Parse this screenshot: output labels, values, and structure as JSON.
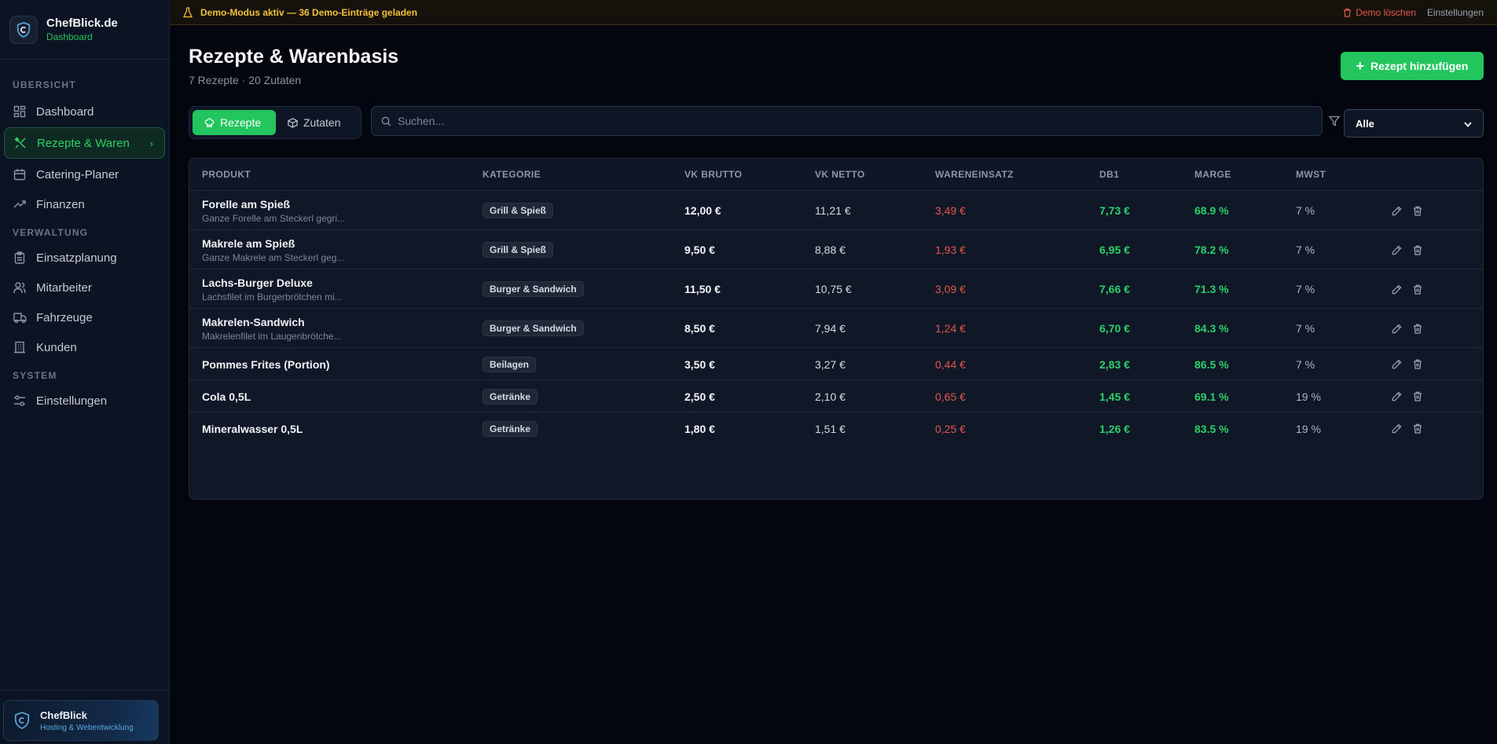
{
  "brand": {
    "name": "ChefBlick.de",
    "subtitle": "Dashboard"
  },
  "sidebar": {
    "sections": [
      {
        "title": "ÜBERSICHT",
        "items": [
          {
            "label": "Dashboard",
            "icon": "grid-icon"
          },
          {
            "label": "Rezepte & Waren",
            "icon": "utensils-icon",
            "active": true
          },
          {
            "label": "Catering-Planer",
            "icon": "calendar-icon"
          },
          {
            "label": "Finanzen",
            "icon": "trend-icon"
          }
        ]
      },
      {
        "title": "VERWALTUNG",
        "items": [
          {
            "label": "Einsatzplanung",
            "icon": "clipboard-icon"
          },
          {
            "label": "Mitarbeiter",
            "icon": "users-icon"
          },
          {
            "label": "Fahrzeuge",
            "icon": "truck-icon"
          },
          {
            "label": "Kunden",
            "icon": "building-icon"
          }
        ]
      },
      {
        "title": "SYSTEM",
        "items": [
          {
            "label": "Einstellungen",
            "icon": "sliders-icon"
          }
        ]
      }
    ],
    "footer": {
      "title": "ChefBlick",
      "subtitle": "Hosting & Webentwicklung"
    }
  },
  "demobar": {
    "message": "Demo-Modus aktiv — 36 Demo-Einträge geladen",
    "delete_label": "Demo löschen",
    "settings_label": "Einstellungen"
  },
  "page": {
    "title": "Rezepte & Warenbasis",
    "subtitle": "7 Rezepte · 20 Zutaten",
    "add_button": "Rezept hinzufügen",
    "tabs": [
      {
        "label": "Rezepte",
        "active": true
      },
      {
        "label": "Zutaten"
      }
    ],
    "search_placeholder": "Suchen...",
    "filter_value": "Alle"
  },
  "table": {
    "headers": {
      "produkt": "PRODUKT",
      "kategorie": "KATEGORIE",
      "vk_brutto": "VK BRUTTO",
      "vk_netto": "VK NETTO",
      "wareneinsatz": "WARENEINSATZ",
      "db1": "DB1",
      "marge": "MARGE",
      "mwst": "MWST"
    },
    "rows": [
      {
        "name": "Forelle am Spieß",
        "desc": "Ganze Forelle am Steckerl gegri...",
        "category": "Grill & Spieß",
        "brutto": "12,00 €",
        "netto": "11,21 €",
        "einsatz": "3,49 €",
        "db1": "7,73 €",
        "marge": "68.9 %",
        "mwst": "7 %"
      },
      {
        "name": "Makrele am Spieß",
        "desc": "Ganze Makrele am Steckerl geg...",
        "category": "Grill & Spieß",
        "brutto": "9,50 €",
        "netto": "8,88 €",
        "einsatz": "1,93 €",
        "db1": "6,95 €",
        "marge": "78.2 %",
        "mwst": "7 %"
      },
      {
        "name": "Lachs-Burger Deluxe",
        "desc": "Lachsfilet im Burgerbrötchen mi...",
        "category": "Burger & Sandwich",
        "brutto": "11,50 €",
        "netto": "10,75 €",
        "einsatz": "3,09 €",
        "db1": "7,66 €",
        "marge": "71.3 %",
        "mwst": "7 %"
      },
      {
        "name": "Makrelen-Sandwich",
        "desc": "Makrelenfilet im Laugenbrötche...",
        "category": "Burger & Sandwich",
        "brutto": "8,50 €",
        "netto": "7,94 €",
        "einsatz": "1,24 €",
        "db1": "6,70 €",
        "marge": "84.3 %",
        "mwst": "7 %"
      },
      {
        "name": "Pommes Frites (Portion)",
        "desc": "",
        "category": "Beilagen",
        "brutto": "3,50 €",
        "netto": "3,27 €",
        "einsatz": "0,44 €",
        "db1": "2,83 €",
        "marge": "86.5 %",
        "mwst": "7 %"
      },
      {
        "name": "Cola 0,5L",
        "desc": "",
        "category": "Getränke",
        "brutto": "2,50 €",
        "netto": "2,10 €",
        "einsatz": "0,65 €",
        "db1": "1,45 €",
        "marge": "69.1 %",
        "mwst": "19 %"
      },
      {
        "name": "Mineralwasser 0,5L",
        "desc": "",
        "category": "Getränke",
        "brutto": "1,80 €",
        "netto": "1,51 €",
        "einsatz": "0,25 €",
        "db1": "1,26 €",
        "marge": "83.5 %",
        "mwst": "19 %"
      }
    ]
  },
  "colors": {
    "accent": "#22c55e",
    "danger": "#e0574f",
    "warning": "#f5c03b"
  }
}
